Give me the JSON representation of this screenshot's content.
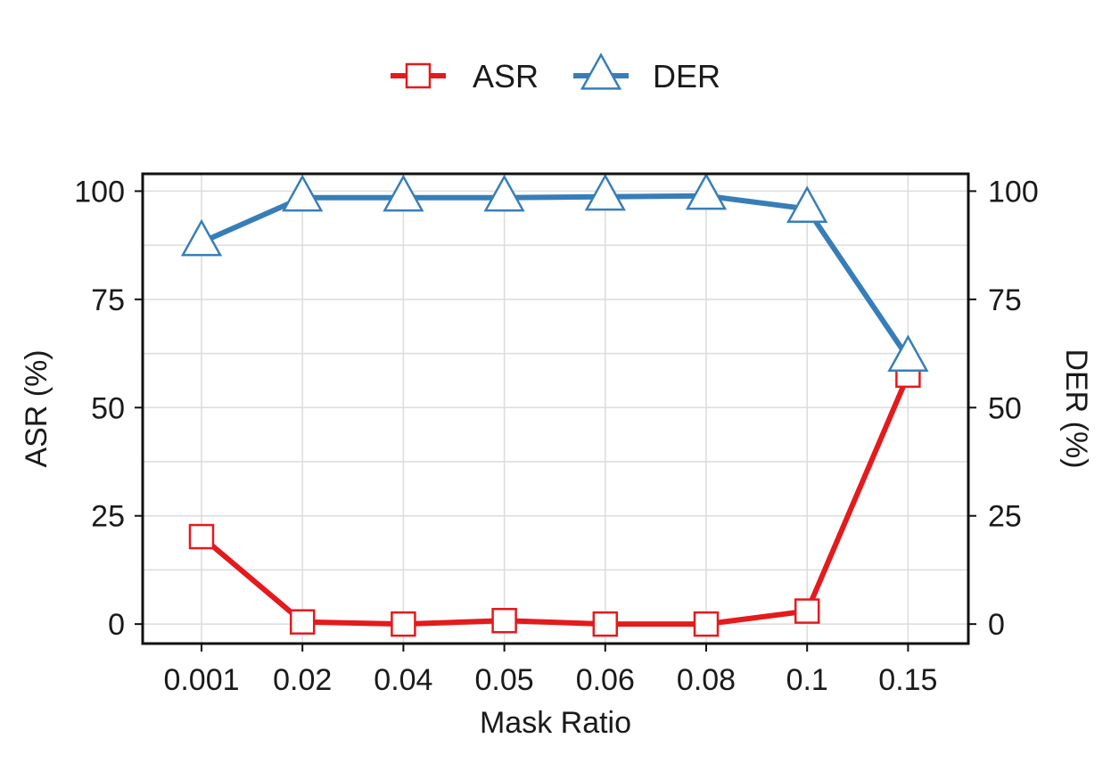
{
  "chart_data": {
    "type": "line",
    "x_categories": [
      "0.001",
      "0.02",
      "0.04",
      "0.05",
      "0.06",
      "0.08",
      "0.1",
      "0.15"
    ],
    "xlabel": "Mask Ratio",
    "ylabel_left": "ASR (%)",
    "ylabel_right": "DER (%)",
    "ylim": [
      -4.5,
      104
    ],
    "yticks": [
      0,
      25,
      50,
      75,
      100
    ],
    "grid": true,
    "legend_position": "top-center",
    "series": [
      {
        "name": "ASR",
        "color": "#e41a1c",
        "marker": "square",
        "axis": "left",
        "values": [
          20.2,
          0.5,
          0.0,
          0.8,
          0.0,
          0.0,
          3.0,
          57.5
        ]
      },
      {
        "name": "DER",
        "color": "#377eb8",
        "marker": "triangle",
        "axis": "right",
        "values": [
          88.2,
          98.5,
          98.5,
          98.5,
          98.7,
          98.9,
          95.9,
          61.5
        ]
      }
    ]
  }
}
